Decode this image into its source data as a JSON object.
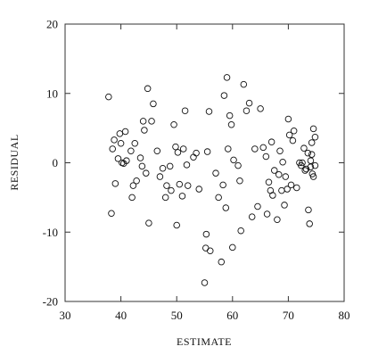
{
  "chart_data": {
    "type": "scatter",
    "title": "",
    "xlabel": "ESTIMATE",
    "ylabel": "RESIDUAL",
    "xlim": [
      30,
      80
    ],
    "ylim": [
      -20,
      20
    ],
    "xticks": [
      "30",
      "40",
      "50",
      "60",
      "70",
      "80"
    ],
    "yticks": [
      "20",
      "10",
      "0",
      "-10",
      "-20"
    ],
    "grid": false,
    "x": [
      37.8,
      38.3,
      38.5,
      38.8,
      39.0,
      39.5,
      39.8,
      40.0,
      40.2,
      40.5,
      40.8,
      41.0,
      41.8,
      42.0,
      42.2,
      42.5,
      42.8,
      43.5,
      43.8,
      44.0,
      44.2,
      44.5,
      44.8,
      45.0,
      45.5,
      45.8,
      46.5,
      47.0,
      47.5,
      48.0,
      48.2,
      48.8,
      49.0,
      49.5,
      49.8,
      50.0,
      50.2,
      50.5,
      51.0,
      51.2,
      51.5,
      51.8,
      52.0,
      53.0,
      53.5,
      54.0,
      55.0,
      55.2,
      55.3,
      55.5,
      55.8,
      56.0,
      57.0,
      57.5,
      58.0,
      58.3,
      58.5,
      58.8,
      59.0,
      59.2,
      59.5,
      59.8,
      60.0,
      60.2,
      61.0,
      61.3,
      61.5,
      62.0,
      62.5,
      63.0,
      63.5,
      64.0,
      64.5,
      65.0,
      65.5,
      66.0,
      66.2,
      66.5,
      66.8,
      67.0,
      67.2,
      67.5,
      68.0,
      68.3,
      68.5,
      68.8,
      69.0,
      69.3,
      69.5,
      69.8,
      70.0,
      70.2,
      70.5,
      70.8,
      71.0,
      71.5,
      72.0,
      72.3,
      72.5,
      72.8,
      73.0,
      73.2,
      73.5,
      73.6,
      73.8,
      74.0,
      74.0,
      74.2,
      74.2,
      74.3,
      74.5,
      74.5,
      74.8,
      74.8
    ],
    "y": [
      9.5,
      -7.3,
      2.0,
      3.3,
      -3.0,
      0.6,
      4.2,
      2.8,
      0.0,
      -0.1,
      4.5,
      0.3,
      1.7,
      -5.0,
      -3.3,
      2.8,
      -2.6,
      0.7,
      -0.5,
      6.0,
      4.7,
      -1.5,
      10.7,
      -8.7,
      6.0,
      8.5,
      1.7,
      -2.0,
      -0.8,
      -5.0,
      -3.3,
      -0.5,
      -4.0,
      5.5,
      2.3,
      -9.0,
      1.5,
      -3.1,
      -4.8,
      2.0,
      7.5,
      -0.3,
      -3.3,
      0.8,
      1.4,
      -3.8,
      -17.3,
      -12.3,
      -10.3,
      1.6,
      7.4,
      -12.7,
      -1.5,
      -5.0,
      -14.3,
      -3.2,
      9.7,
      -6.5,
      12.3,
      2.0,
      6.8,
      5.5,
      -12.2,
      0.4,
      -0.4,
      -2.6,
      -9.8,
      11.3,
      7.5,
      8.6,
      -7.8,
      2.0,
      -6.3,
      7.8,
      2.2,
      0.9,
      -7.4,
      -2.8,
      -4.0,
      3.0,
      -4.7,
      -1.1,
      -8.2,
      -1.7,
      1.7,
      -4.0,
      0.1,
      -6.1,
      -2.0,
      -3.8,
      6.3,
      4.0,
      -3.2,
      3.2,
      4.6,
      -3.6,
      0.0,
      -0.4,
      0.0,
      2.1,
      -1.1,
      -0.9,
      1.4,
      -6.8,
      -8.8,
      -0.6,
      0.3,
      2.9,
      1.2,
      -1.6,
      -2.0,
      4.9,
      -0.4,
      3.7
    ]
  }
}
